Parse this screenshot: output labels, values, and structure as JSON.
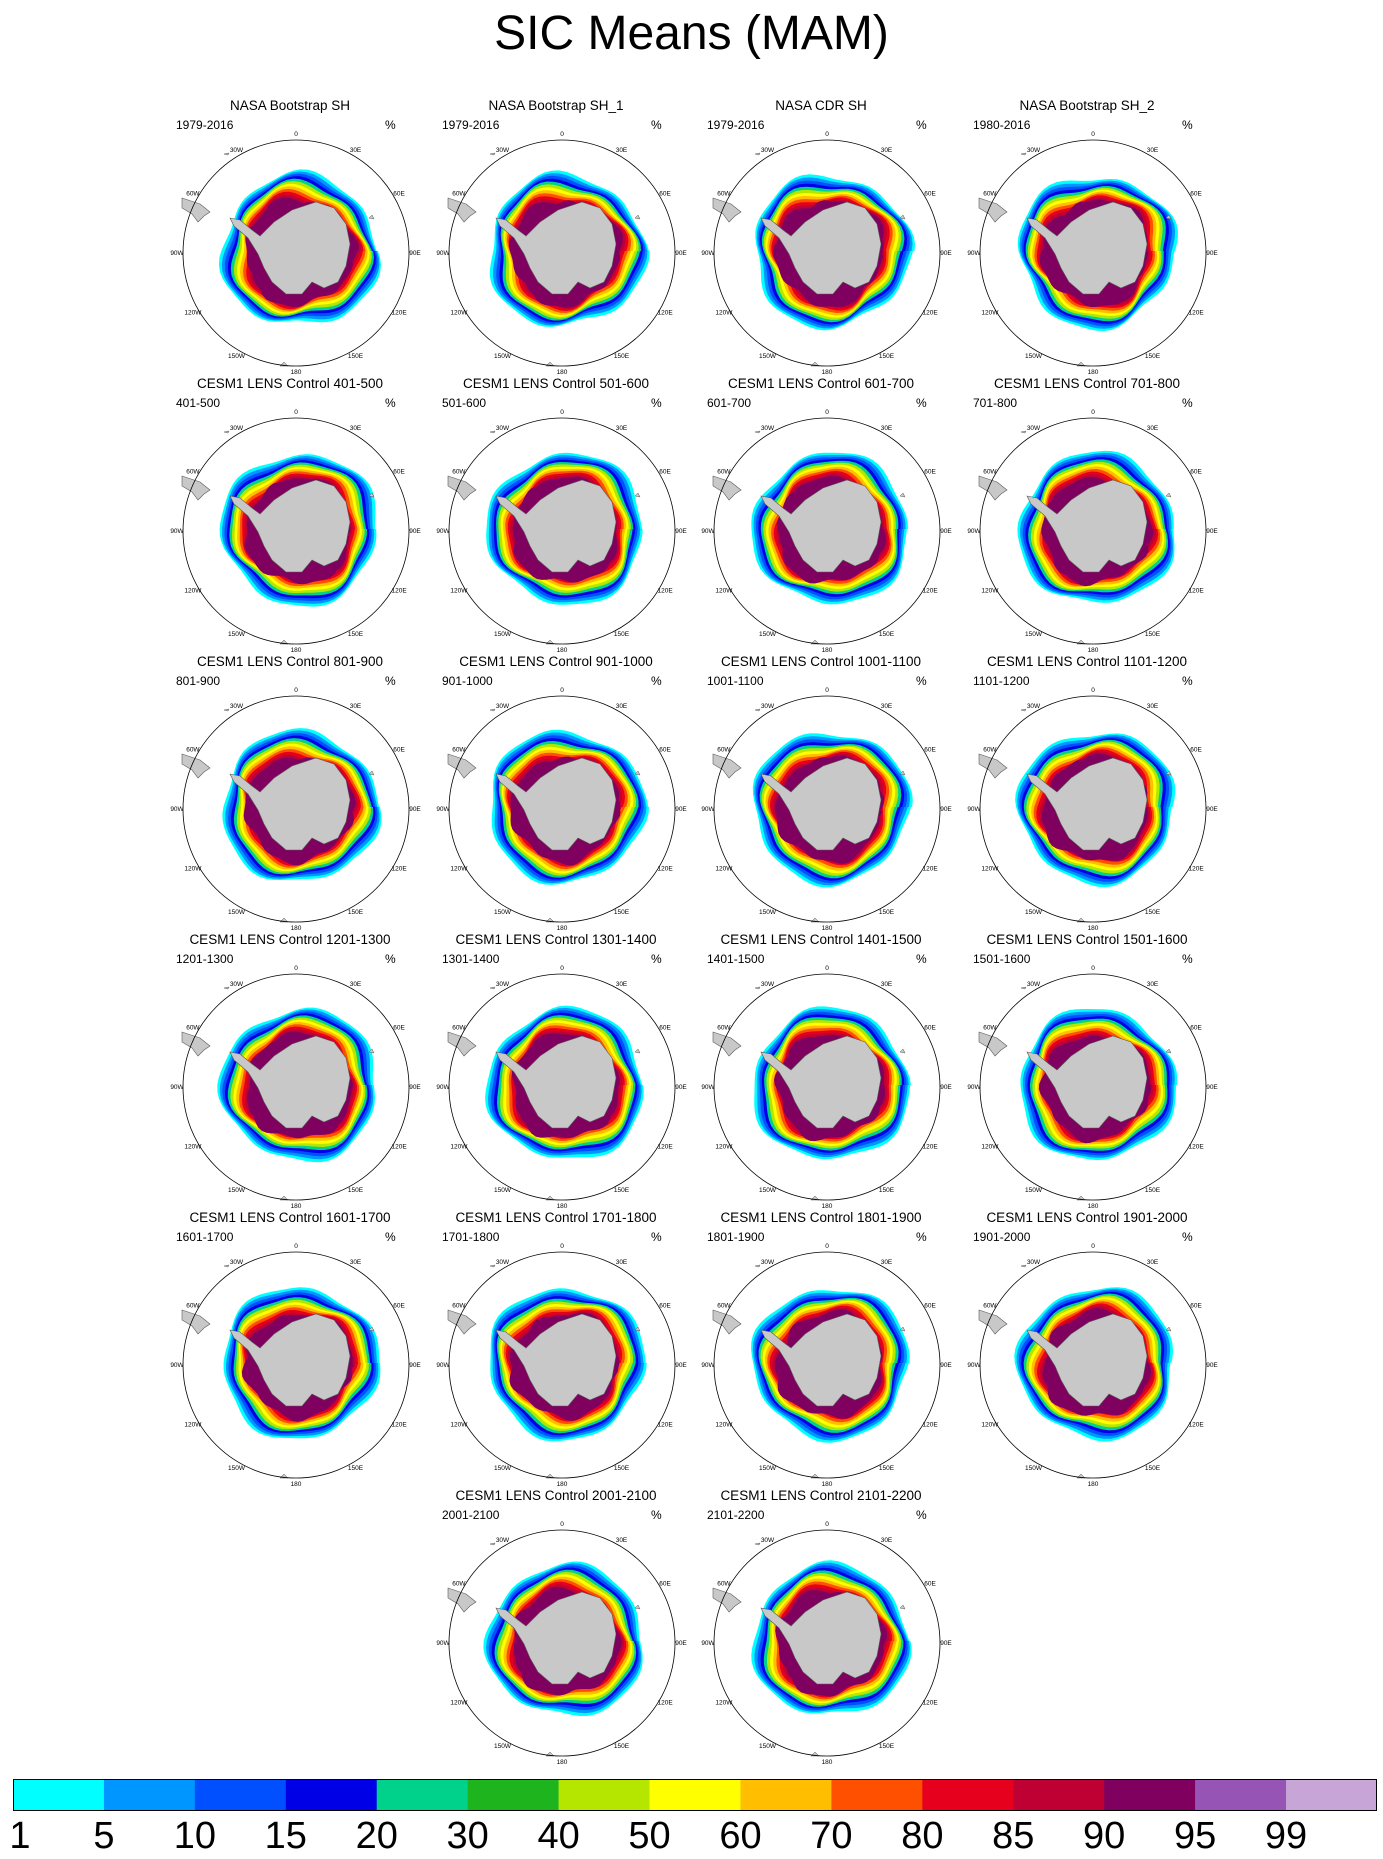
{
  "title": "SIC Means (MAM)",
  "units": "%",
  "panels": [
    {
      "title": "NASA Bootstrap SH",
      "period": "1979-2016",
      "style": "obs"
    },
    {
      "title": "NASA Bootstrap SH_1",
      "period": "1979-2016",
      "style": "obs"
    },
    {
      "title": "NASA CDR SH",
      "period": "1979-2016",
      "style": "obs"
    },
    {
      "title": "NASA Bootstrap SH_2",
      "period": "1980-2016",
      "style": "obs"
    },
    {
      "title": "CESM1 LENS Control 401-500",
      "period": "401-500",
      "style": "model"
    },
    {
      "title": "CESM1 LENS Control 501-600",
      "period": "501-600",
      "style": "model"
    },
    {
      "title": "CESM1 LENS Control 601-700",
      "period": "601-700",
      "style": "model"
    },
    {
      "title": "CESM1 LENS Control 701-800",
      "period": "701-800",
      "style": "model"
    },
    {
      "title": "CESM1 LENS Control 801-900",
      "period": "801-900",
      "style": "model"
    },
    {
      "title": "CESM1 LENS Control 901-1000",
      "period": "901-1000",
      "style": "model"
    },
    {
      "title": "CESM1 LENS Control 1001-1100",
      "period": "1001-1100",
      "style": "model"
    },
    {
      "title": "CESM1 LENS Control 1101-1200",
      "period": "1101-1200",
      "style": "model"
    },
    {
      "title": "CESM1 LENS Control 1201-1300",
      "period": "1201-1300",
      "style": "model"
    },
    {
      "title": "CESM1 LENS Control 1301-1400",
      "period": "1301-1400",
      "style": "model"
    },
    {
      "title": "CESM1 LENS Control 1401-1500",
      "period": "1401-1500",
      "style": "model"
    },
    {
      "title": "CESM1 LENS Control 1501-1600",
      "period": "1501-1600",
      "style": "model"
    },
    {
      "title": "CESM1 LENS Control 1601-1700",
      "period": "1601-1700",
      "style": "model"
    },
    {
      "title": "CESM1 LENS Control 1701-1800",
      "period": "1701-1800",
      "style": "model"
    },
    {
      "title": "CESM1 LENS Control 1801-1900",
      "period": "1801-1900",
      "style": "model"
    },
    {
      "title": "CESM1 LENS Control 1901-2000",
      "period": "1901-2000",
      "style": "model"
    },
    {
      "title": "CESM1 LENS Control 2001-2100",
      "period": "2001-2100",
      "style": "model"
    },
    {
      "title": "CESM1 LENS Control 2101-2200",
      "period": "2101-2200",
      "style": "model"
    }
  ],
  "longitude_labels": [
    "0",
    "30E",
    "60E",
    "90E",
    "120E",
    "150E",
    "180",
    "150W",
    "120W",
    "90W",
    "60W",
    "30W"
  ],
  "colorbar": {
    "labels": [
      "1",
      "5",
      "10",
      "15",
      "20",
      "30",
      "40",
      "50",
      "60",
      "70",
      "80",
      "85",
      "90",
      "95",
      "99"
    ],
    "colors": [
      "#00ffff",
      "#0096ff",
      "#0050ff",
      "#0000e6",
      "#00d28c",
      "#1eb41e",
      "#b4e600",
      "#ffff00",
      "#ffbe00",
      "#ff5000",
      "#e6001e",
      "#be0032",
      "#80005f",
      "#9655b4",
      "#c8a5d7"
    ]
  },
  "map_colors": {
    "land": "#c8c8c8",
    "land_outline": "#5a5a5a"
  }
}
